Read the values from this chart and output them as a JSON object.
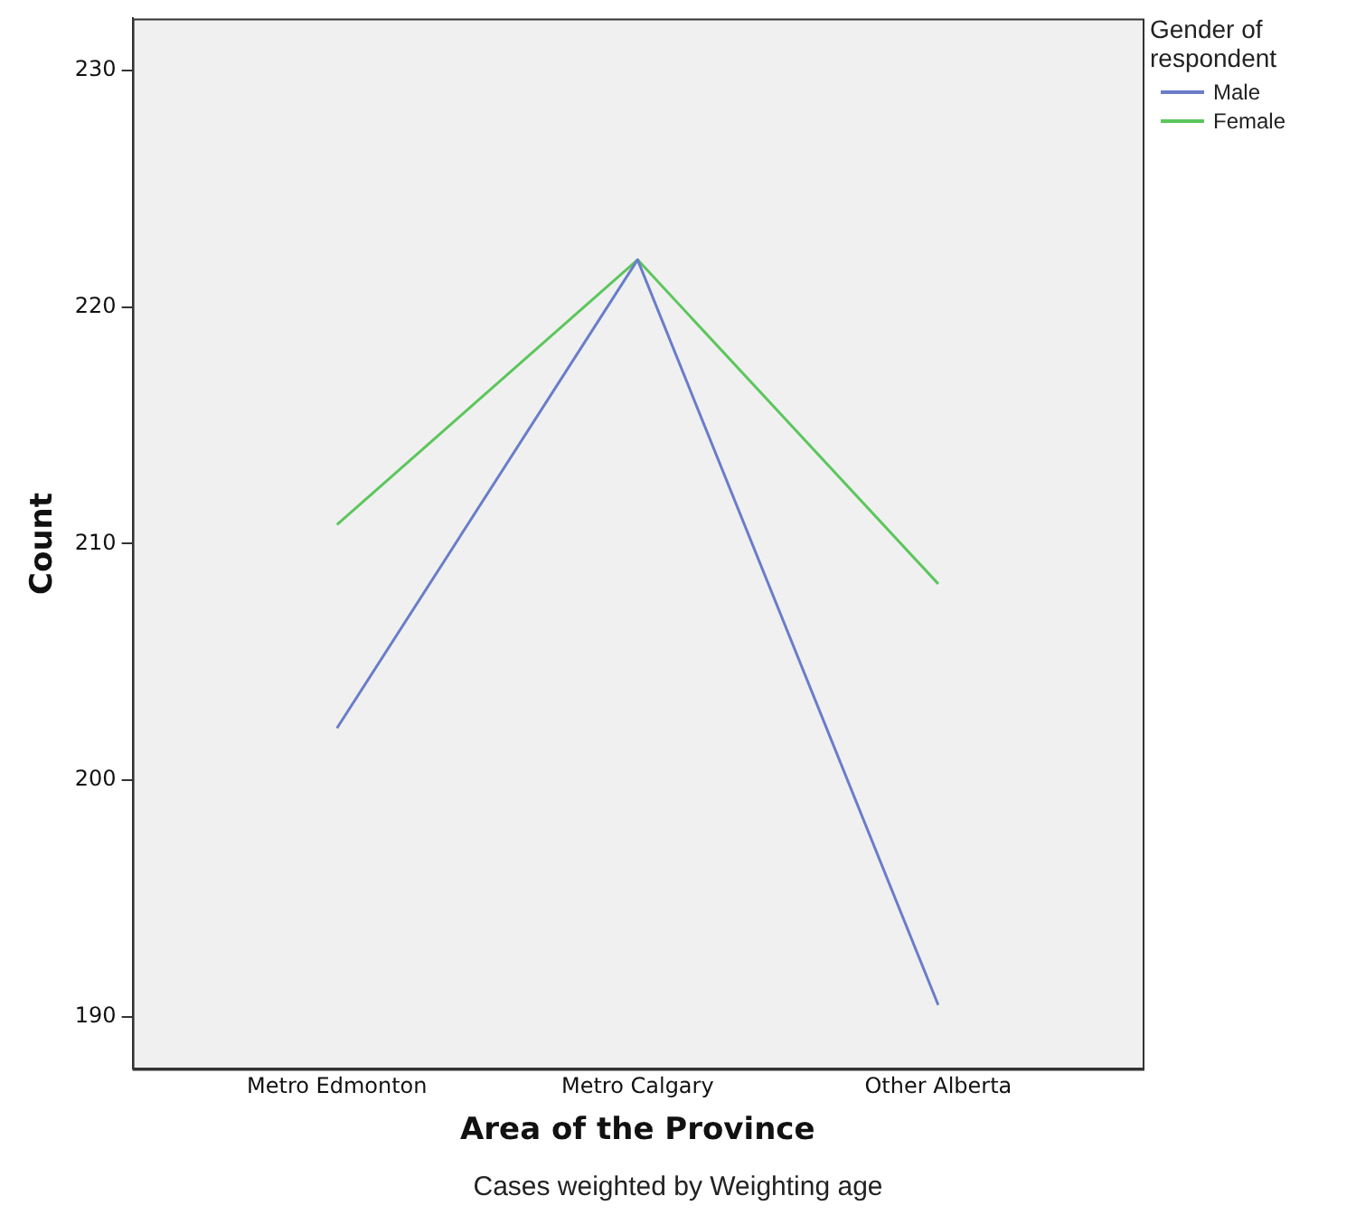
{
  "chart_data": {
    "type": "line",
    "xlabel": "Area of the Province",
    "ylabel": "Count",
    "legend_title": "Gender of respondent",
    "categories": [
      "Metro Edmonton",
      "Metro Calgary",
      "Other Alberta"
    ],
    "series": [
      {
        "name": "Male",
        "color": "#6a7dc9",
        "values": [
          202.2,
          222,
          190.5
        ]
      },
      {
        "name": "Female",
        "color": "#5cc65c",
        "values": [
          210.8,
          222,
          208.3
        ]
      }
    ],
    "ylim": [
      187.8,
      232.2
    ],
    "yticks": [
      190,
      200,
      210,
      220,
      230
    ],
    "grid": false,
    "legend": "right",
    "marker": "none",
    "line_style": "solid",
    "annotations": [
      "Cases weighted by Weighting age"
    ]
  }
}
